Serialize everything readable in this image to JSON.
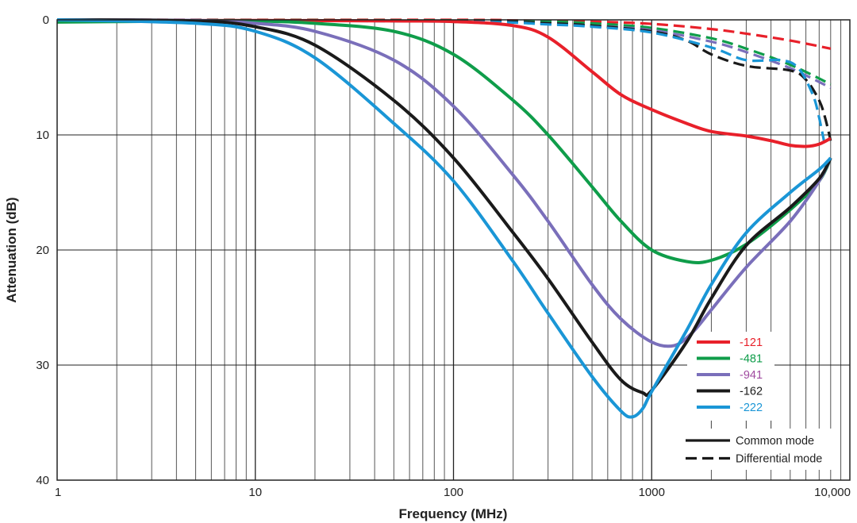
{
  "chart_data": {
    "type": "line",
    "title": "",
    "xlabel": "Frequency (MHz)",
    "ylabel": "Attenuation (dB)",
    "xscale": "log",
    "xlim": [
      1,
      10000
    ],
    "ylim": [
      0,
      40
    ],
    "y_inverted": true,
    "grid": true,
    "x_ticks": [
      {
        "value": 1,
        "label": "1"
      },
      {
        "value": 10,
        "label": "10"
      },
      {
        "value": 100,
        "label": "100"
      },
      {
        "value": 1000,
        "label": "1000"
      },
      {
        "value": 10000,
        "label": "10,000"
      }
    ],
    "y_ticks": [
      {
        "value": 0,
        "label": "0"
      },
      {
        "value": 10,
        "label": "10"
      },
      {
        "value": 20,
        "label": "20"
      },
      {
        "value": 30,
        "label": "30"
      },
      {
        "value": 40,
        "label": "40"
      }
    ],
    "legend": {
      "placement": "bottom-right",
      "series_entries": [
        {
          "label": "-121",
          "color": "#e8202a",
          "text_color": "#e8202a"
        },
        {
          "label": "-481",
          "color": "#0f9d4a",
          "text_color": "#0f9d4a"
        },
        {
          "label": "-941",
          "color": "#7a6fba",
          "text_color": "#a04aa0"
        },
        {
          "label": "-162",
          "color": "#1a1a1a",
          "text_color": "#1a1a1a"
        },
        {
          "label": "-222",
          "color": "#1a96d6",
          "text_color": "#1a96d6"
        }
      ],
      "style_entries": [
        {
          "label": "Common mode",
          "dash": false
        },
        {
          "label": "Differential mode",
          "dash": true
        }
      ]
    },
    "series": [
      {
        "name": "-121",
        "mode": "Common mode",
        "color": "#e8202a",
        "dash": false,
        "x": [
          1,
          10,
          50,
          100,
          200,
          300,
          500,
          700,
          1000,
          1500,
          2000,
          3000,
          4000,
          5000,
          6000,
          7000,
          8000
        ],
        "y": [
          0.1,
          0.05,
          0.1,
          0.15,
          0.5,
          1.5,
          4.5,
          6.5,
          7.8,
          9.0,
          9.7,
          10.1,
          10.5,
          10.9,
          11.0,
          10.8,
          10.3
        ]
      },
      {
        "name": "-481",
        "mode": "Common mode",
        "color": "#0f9d4a",
        "dash": false,
        "x": [
          1,
          5,
          10,
          20,
          50,
          100,
          200,
          300,
          500,
          700,
          1000,
          1500,
          2000,
          3000,
          5000,
          7000,
          8000
        ],
        "y": [
          0.2,
          0.1,
          0.1,
          0.3,
          1.0,
          3.0,
          7.0,
          10.0,
          14.5,
          17.5,
          20.0,
          21.0,
          20.9,
          19.5,
          16.5,
          14.0,
          12.0
        ]
      },
      {
        "name": "-941",
        "mode": "Common mode",
        "color": "#7a6fba",
        "dash": false,
        "x": [
          1,
          5,
          10,
          20,
          50,
          100,
          200,
          300,
          500,
          700,
          1000,
          1300,
          1600,
          2000,
          3000,
          5000,
          7000,
          8000
        ],
        "y": [
          0.0,
          0.05,
          0.3,
          1.0,
          3.5,
          7.5,
          13.5,
          17.5,
          23.0,
          26.0,
          28.0,
          28.3,
          27.2,
          25.2,
          21.5,
          17.5,
          14.0,
          12.0
        ]
      },
      {
        "name": "-162",
        "mode": "Common mode",
        "color": "#1a1a1a",
        "dash": false,
        "x": [
          1,
          5,
          10,
          20,
          50,
          100,
          200,
          300,
          500,
          700,
          900,
          1000,
          1500,
          2000,
          3000,
          5000,
          7000,
          8000
        ],
        "y": [
          0.0,
          0.1,
          0.6,
          2.2,
          7.0,
          12.0,
          18.5,
          22.5,
          28.0,
          31.3,
          32.4,
          32.2,
          28.0,
          24.2,
          19.6,
          16.3,
          13.8,
          12.0
        ]
      },
      {
        "name": "-222",
        "mode": "Common mode",
        "color": "#1a96d6",
        "dash": false,
        "x": [
          1,
          5,
          10,
          20,
          50,
          100,
          200,
          300,
          500,
          700,
          800,
          900,
          1000,
          1500,
          2000,
          3000,
          5000,
          7000,
          8000
        ],
        "y": [
          0.0,
          0.3,
          1.0,
          3.3,
          9.0,
          14.0,
          21.0,
          25.5,
          31.0,
          34.0,
          34.5,
          33.8,
          32.3,
          27.0,
          23.0,
          18.5,
          15.0,
          13.0,
          12.0
        ]
      },
      {
        "name": "-121",
        "mode": "Differential mode",
        "color": "#e8202a",
        "dash": true,
        "x": [
          1,
          100,
          200,
          500,
          1000,
          2000,
          3000,
          5000,
          8000
        ],
        "y": [
          0.0,
          0.0,
          0.05,
          0.15,
          0.35,
          0.8,
          1.2,
          1.8,
          2.5
        ]
      },
      {
        "name": "-481",
        "mode": "Differential mode",
        "color": "#0f9d4a",
        "dash": true,
        "x": [
          1,
          100,
          300,
          500,
          1000,
          2000,
          3000,
          5000,
          8000
        ],
        "y": [
          0.0,
          0.05,
          0.15,
          0.3,
          0.7,
          1.6,
          2.5,
          3.9,
          5.6
        ]
      },
      {
        "name": "-941",
        "mode": "Differential mode",
        "color": "#7a6fba",
        "dash": true,
        "x": [
          1,
          100,
          300,
          500,
          1000,
          2000,
          3000,
          5000,
          8000
        ],
        "y": [
          0.0,
          0.1,
          0.3,
          0.5,
          0.9,
          1.9,
          2.8,
          4.2,
          5.9
        ]
      },
      {
        "name": "-162",
        "mode": "Differential mode",
        "color": "#1a1a1a",
        "dash": true,
        "x": [
          1,
          100,
          300,
          500,
          1000,
          1500,
          2000,
          3000,
          5000,
          6000,
          7000,
          7500,
          8000
        ],
        "y": [
          0.0,
          0.1,
          0.3,
          0.5,
          1.0,
          1.8,
          3.0,
          4.0,
          4.4,
          5.2,
          7.0,
          8.5,
          10.5
        ]
      },
      {
        "name": "-222",
        "mode": "Differential mode",
        "color": "#1a96d6",
        "dash": true,
        "x": [
          1,
          100,
          300,
          500,
          1000,
          2000,
          3000,
          4500,
          5500,
          6500,
          7000,
          7500
        ],
        "y": [
          0.0,
          0.15,
          0.4,
          0.6,
          1.1,
          2.4,
          3.5,
          3.5,
          4.2,
          6.5,
          8.5,
          11.0
        ]
      }
    ]
  }
}
